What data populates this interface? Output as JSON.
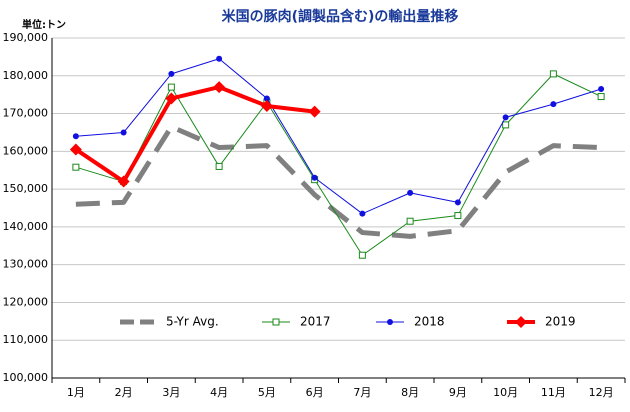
{
  "chart_data": {
    "type": "line",
    "title": "米国の豚肉(調製品含む)の輸出量推移",
    "y_unit_label": "単位:トン",
    "categories": [
      "1月",
      "2月",
      "3月",
      "4月",
      "5月",
      "6月",
      "7月",
      "8月",
      "9月",
      "10月",
      "11月",
      "12月"
    ],
    "series": [
      {
        "name": "5-Yr Avg.",
        "color": "#808080",
        "dash": true,
        "marker": "none",
        "values": [
          146000,
          146500,
          166500,
          161000,
          161500,
          148500,
          138500,
          137500,
          139000,
          154500,
          161500,
          161000
        ]
      },
      {
        "name": "2017",
        "color": "#1a8a1a",
        "marker": "square",
        "values": [
          155800,
          152000,
          177000,
          156000,
          173000,
          152500,
          132500,
          141500,
          143000,
          167000,
          180500,
          174500
        ]
      },
      {
        "name": "2018",
        "color": "#1010e0",
        "marker": "circle",
        "values": [
          164000,
          165000,
          180500,
          184500,
          174000,
          153000,
          143500,
          149000,
          146500,
          169000,
          172500,
          176500
        ]
      },
      {
        "name": "2019",
        "color": "#ff0000",
        "marker": "diamond",
        "thick": true,
        "values": [
          160500,
          152000,
          174000,
          177000,
          172000,
          170500,
          null,
          null,
          null,
          null,
          null,
          null
        ]
      }
    ],
    "ylim": [
      100000,
      190000
    ],
    "yticks": [
      {
        "value": 100000,
        "label": "100,000"
      },
      {
        "value": 110000,
        "label": "110,000"
      },
      {
        "value": 120000,
        "label": "120,000"
      },
      {
        "value": 130000,
        "label": "130,000"
      },
      {
        "value": 140000,
        "label": "140,000"
      },
      {
        "value": 150000,
        "label": "150,000"
      },
      {
        "value": 160000,
        "label": "160,000"
      },
      {
        "value": 170000,
        "label": "170,000"
      },
      {
        "value": 180000,
        "label": "180,000"
      },
      {
        "value": 190000,
        "label": "190,000"
      }
    ],
    "grid": true,
    "legend": "bottom"
  }
}
